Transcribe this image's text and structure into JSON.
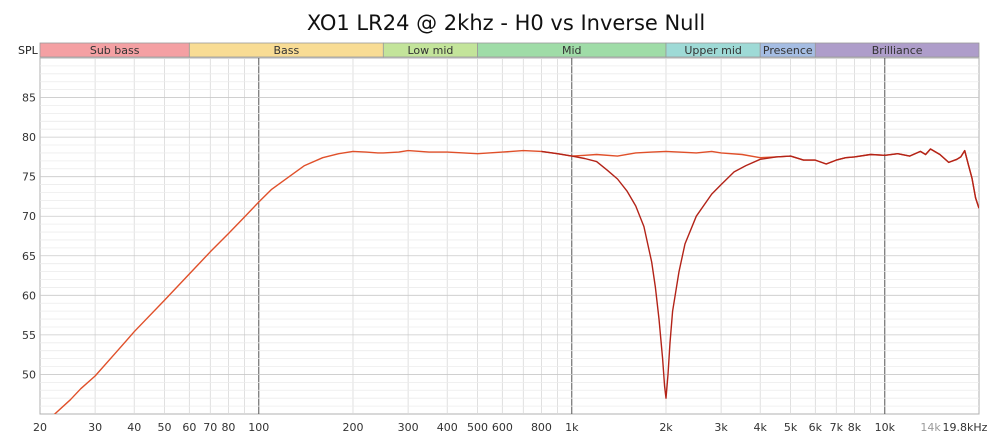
{
  "chart_data": {
    "type": "line",
    "title": "XO1 LR24 @ 2khz - H0 vs Inverse Null",
    "ylabel": "SPL",
    "xscale": "log",
    "xlim": [
      20,
      20000
    ],
    "ylim": [
      45,
      90
    ],
    "grid": true,
    "x_ticks": [
      {
        "value": 20,
        "label": "20"
      },
      {
        "value": 30,
        "label": "30"
      },
      {
        "value": 40,
        "label": "40"
      },
      {
        "value": 50,
        "label": "50"
      },
      {
        "value": 60,
        "label": "60"
      },
      {
        "value": 70,
        "label": "70"
      },
      {
        "value": 80,
        "label": "80"
      },
      {
        "value": 100,
        "label": "100"
      },
      {
        "value": 200,
        "label": "200"
      },
      {
        "value": 300,
        "label": "300"
      },
      {
        "value": 400,
        "label": "400"
      },
      {
        "value": 500,
        "label": "500"
      },
      {
        "value": 600,
        "label": "600"
      },
      {
        "value": 800,
        "label": "800"
      },
      {
        "value": 1000,
        "label": "1k"
      },
      {
        "value": 2000,
        "label": "2k"
      },
      {
        "value": 3000,
        "label": "3k"
      },
      {
        "value": 4000,
        "label": "4k"
      },
      {
        "value": 5000,
        "label": "5k"
      },
      {
        "value": 6000,
        "label": "6k"
      },
      {
        "value": 7000,
        "label": "7k"
      },
      {
        "value": 8000,
        "label": "8k"
      },
      {
        "value": 10000,
        "label": "10k"
      },
      {
        "value": 14000,
        "label": "14k",
        "faint": true
      },
      {
        "value": 19800,
        "label": "19.8kHz"
      }
    ],
    "y_ticks": [
      50,
      55,
      60,
      65,
      70,
      75,
      80,
      85
    ],
    "bands": [
      {
        "label": "Sub bass",
        "from": 20,
        "to": 60,
        "color": "#f4a0a3"
      },
      {
        "label": "Bass",
        "from": 60,
        "to": 250,
        "color": "#f8dc94"
      },
      {
        "label": "Low mid",
        "from": 250,
        "to": 500,
        "color": "#c3e49a"
      },
      {
        "label": "Mid",
        "from": 500,
        "to": 2000,
        "color": "#9fdca7"
      },
      {
        "label": "Upper mid",
        "from": 2000,
        "to": 4000,
        "color": "#9edad6"
      },
      {
        "label": "Presence",
        "from": 4000,
        "to": 6000,
        "color": "#a5bde3"
      },
      {
        "label": "Brilliance",
        "from": 6000,
        "to": 20000,
        "color": "#ae9dca"
      }
    ],
    "series": [
      {
        "color": "#e0502a",
        "x": [
          20,
          22,
          25,
          27,
          30,
          35,
          40,
          50,
          60,
          70,
          80,
          90,
          100,
          110,
          125,
          140,
          160,
          180,
          200,
          220,
          240,
          250,
          280,
          300,
          350,
          400,
          500,
          600,
          700,
          800,
          900,
          1000,
          1100,
          1200,
          1400,
          1600,
          1800,
          2000,
          2200,
          2500,
          2800,
          3000,
          3500,
          4000,
          4500,
          5000,
          5500,
          6000,
          6500,
          7000,
          7500,
          8000,
          9000,
          10000,
          11000,
          12000,
          13000,
          13500,
          14000,
          15000,
          16000,
          17000,
          17500,
          18000,
          18500,
          19000,
          19500,
          20000
        ],
        "y": [
          43.5,
          44.8,
          46.8,
          48.2,
          49.8,
          52.8,
          55.4,
          59.4,
          62.7,
          65.5,
          67.8,
          69.9,
          71.8,
          73.4,
          75.0,
          76.4,
          77.4,
          77.9,
          78.2,
          78.1,
          78.0,
          78.0,
          78.1,
          78.3,
          78.1,
          78.1,
          77.9,
          78.1,
          78.3,
          78.2,
          77.9,
          77.6,
          77.7,
          77.8,
          77.6,
          78.0,
          78.1,
          78.2,
          78.1,
          78.0,
          78.2,
          78.0,
          77.8,
          77.4,
          77.5,
          77.6,
          77.1,
          77.1,
          76.6,
          77.1,
          77.4,
          77.5,
          77.8,
          77.7,
          77.9,
          77.6,
          78.2,
          77.8,
          78.5,
          77.8,
          76.8,
          77.2,
          77.5,
          78.3,
          76.5,
          74.8,
          72.3,
          71.0
        ]
      },
      {
        "color": "#b32318",
        "x": [
          800,
          900,
          1000,
          1100,
          1200,
          1300,
          1400,
          1500,
          1600,
          1700,
          1800,
          1850,
          1900,
          1950,
          1980,
          2000,
          2030,
          2060,
          2100,
          2200,
          2300,
          2500,
          2800,
          3000,
          3300,
          3600,
          4000,
          4500,
          5000,
          5500,
          6000,
          6500,
          7000,
          7500,
          8000,
          9000,
          10000,
          11000,
          12000,
          13000,
          13500,
          14000,
          15000,
          16000,
          17000,
          17500,
          18000,
          18500,
          19000,
          19500,
          20000
        ],
        "y": [
          78.2,
          77.9,
          77.6,
          77.3,
          76.9,
          75.8,
          74.7,
          73.2,
          71.3,
          68.7,
          64.2,
          61.0,
          57.0,
          52.0,
          48.5,
          47.0,
          50.0,
          54.0,
          58.0,
          63.0,
          66.5,
          70.0,
          72.8,
          74.0,
          75.6,
          76.4,
          77.2,
          77.5,
          77.6,
          77.1,
          77.1,
          76.6,
          77.1,
          77.4,
          77.5,
          77.8,
          77.7,
          77.9,
          77.6,
          78.2,
          77.8,
          78.5,
          77.8,
          76.8,
          77.2,
          77.5,
          78.3,
          76.5,
          74.8,
          72.3,
          71.0
        ]
      }
    ]
  }
}
